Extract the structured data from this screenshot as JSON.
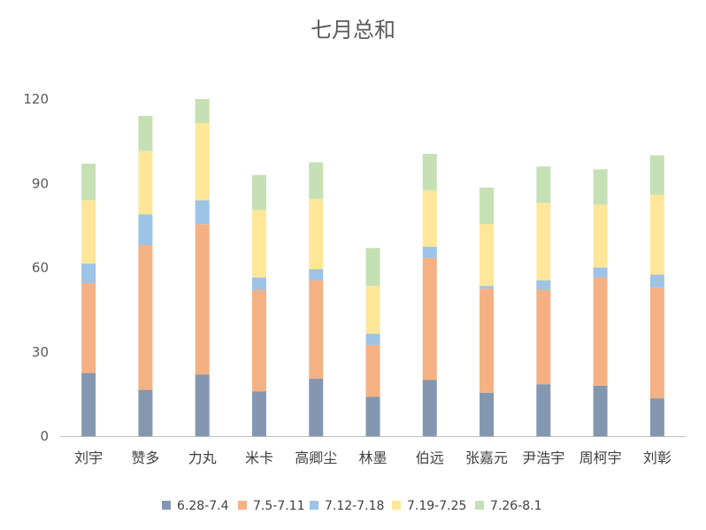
{
  "chart_data": {
    "type": "bar",
    "stacked": true,
    "title": "七月总和",
    "xlabel": "",
    "ylabel": "",
    "ylim": [
      0,
      120
    ],
    "yticks": [
      0,
      30,
      60,
      90,
      120
    ],
    "grid": false,
    "legend_position": "bottom",
    "categories": [
      "刘宇",
      "赞多",
      "力丸",
      "米卡",
      "高卿尘",
      "林墨",
      "伯远",
      "张嘉元",
      "尹浩宇",
      "周柯宇",
      "刘彰"
    ],
    "series": [
      {
        "name": "6.28-7.4",
        "color": "#8497b0",
        "values": [
          22.5,
          16.5,
          22,
          16,
          20.5,
          14,
          20,
          15.5,
          18.5,
          18,
          13.5
        ]
      },
      {
        "name": "7.5-7.11",
        "color": "#f4b183",
        "values": [
          32,
          51.5,
          53.5,
          36,
          35,
          18.5,
          43.5,
          37,
          33.5,
          38.5,
          39.5
        ]
      },
      {
        "name": "7.12-7.18",
        "color": "#9dc3e6",
        "values": [
          7,
          11,
          8.5,
          4.5,
          4,
          4,
          4,
          1,
          3.5,
          3.5,
          4.5
        ]
      },
      {
        "name": "7.19-7.25",
        "color": "#ffe699",
        "values": [
          22.5,
          22.5,
          27.5,
          24,
          25,
          17,
          20,
          22,
          27.5,
          22.5,
          28.5
        ]
      },
      {
        "name": "7.26-8.1",
        "color": "#c5e0b4",
        "values": [
          13,
          12.5,
          8.5,
          12.5,
          13,
          13.5,
          13,
          13,
          13,
          12.5,
          14
        ]
      }
    ]
  }
}
